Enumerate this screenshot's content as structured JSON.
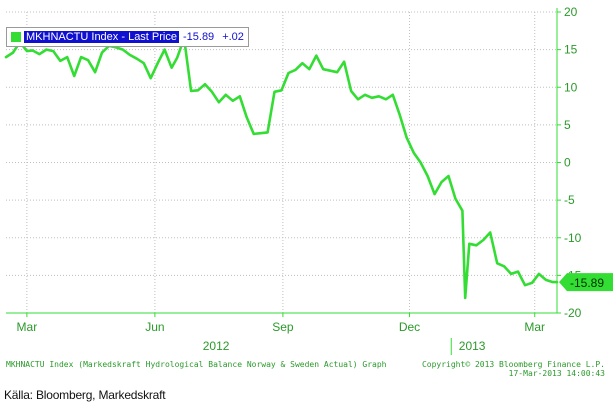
{
  "chart_data": {
    "type": "line",
    "title": "",
    "xlabel": "",
    "ylabel": "",
    "ylim": [
      -20,
      20
    ],
    "yticks": [
      20,
      15,
      10,
      5,
      0,
      -5,
      -10,
      -15,
      -20
    ],
    "xticks": [
      {
        "label": "Mar",
        "x": "2012-03-01"
      },
      {
        "label": "Jun",
        "x": "2012-06-01"
      },
      {
        "label": "Sep",
        "x": "2012-09-01"
      },
      {
        "label": "Dec",
        "x": "2012-12-01"
      },
      {
        "label": "Mar",
        "x": "2013-03-01"
      }
    ],
    "year_labels": [
      {
        "label": "2012",
        "x": "2012-07-15"
      },
      {
        "label": "2013",
        "x": "2013-01-15"
      }
    ],
    "xlim": [
      "2012-02-15",
      "2013-03-17"
    ],
    "grid": true,
    "legend_position": "top-left",
    "series": [
      {
        "name": "MKHNACTU Index - Last Price",
        "color": "#33dd33",
        "last_value": "-15.89",
        "change": "+.02",
        "x": [
          "2012-02-15",
          "2012-02-20",
          "2012-02-25",
          "2012-03-01",
          "2012-03-05",
          "2012-03-10",
          "2012-03-15",
          "2012-03-20",
          "2012-03-25",
          "2012-03-30",
          "2012-04-04",
          "2012-04-09",
          "2012-04-14",
          "2012-04-19",
          "2012-04-24",
          "2012-04-29",
          "2012-05-04",
          "2012-05-09",
          "2012-05-14",
          "2012-05-19",
          "2012-05-24",
          "2012-05-29",
          "2012-06-03",
          "2012-06-08",
          "2012-06-13",
          "2012-06-17",
          "2012-06-22",
          "2012-06-27",
          "2012-07-02",
          "2012-07-07",
          "2012-07-12",
          "2012-07-17",
          "2012-07-22",
          "2012-07-27",
          "2012-08-01",
          "2012-08-06",
          "2012-08-11",
          "2012-08-16",
          "2012-08-21",
          "2012-08-26",
          "2012-08-31",
          "2012-09-05",
          "2012-09-10",
          "2012-09-15",
          "2012-09-20",
          "2012-09-25",
          "2012-09-30",
          "2012-10-05",
          "2012-10-10",
          "2012-10-15",
          "2012-10-20",
          "2012-10-25",
          "2012-10-30",
          "2012-11-04",
          "2012-11-09",
          "2012-11-14",
          "2012-11-19",
          "2012-11-24",
          "2012-11-29",
          "2012-12-04",
          "2012-12-09",
          "2012-12-14",
          "2012-12-19",
          "2012-12-24",
          "2012-12-29",
          "2013-01-03",
          "2013-01-08",
          "2013-01-10",
          "2013-01-13",
          "2013-01-18",
          "2013-01-23",
          "2013-01-28",
          "2013-02-02",
          "2013-02-07",
          "2013-02-12",
          "2013-02-17",
          "2013-02-22",
          "2013-02-27",
          "2013-03-04",
          "2013-03-09",
          "2013-03-14",
          "2013-03-17"
        ],
        "values": [
          14.0,
          14.6,
          16.0,
          14.8,
          14.9,
          14.4,
          15.0,
          14.8,
          13.5,
          14.0,
          11.5,
          14.0,
          13.6,
          12.0,
          14.6,
          15.5,
          15.3,
          15.0,
          14.3,
          13.8,
          13.2,
          11.2,
          13.2,
          15.0,
          12.6,
          13.9,
          16.5,
          9.5,
          9.6,
          10.4,
          9.4,
          8.0,
          9.0,
          8.2,
          8.8,
          6.0,
          3.8,
          3.9,
          4.0,
          9.4,
          9.6,
          11.9,
          12.3,
          13.2,
          12.4,
          14.2,
          12.4,
          12.2,
          12.0,
          13.4,
          9.5,
          8.4,
          9.0,
          8.6,
          8.8,
          8.4,
          9.0,
          6.3,
          3.3,
          1.3,
          0.0,
          -1.8,
          -4.2,
          -2.6,
          -1.8,
          -4.8,
          -6.4,
          -18.0,
          -10.8,
          -11.0,
          -10.3,
          -9.3,
          -13.4,
          -13.8,
          -14.8,
          -14.5,
          -16.3,
          -16.0,
          -14.8,
          -15.6,
          -15.9,
          -15.89
        ]
      }
    ]
  },
  "footer": {
    "description": "MKHNACTU Index (Markedskraft Hydrological Balance Norway & Sweden Actual) Graph",
    "copyright": "Copyright© 2013 Bloomberg Finance L.P.",
    "timestamp": "17-Mar-2013 14:00:43"
  },
  "caption": "Källa: Bloomberg, Markedskraft",
  "colors": {
    "line": "#33dd33",
    "axis": "#33dd33",
    "grid": "#bfbfbf",
    "text": "#2a9a2a",
    "legend_highlight": "#1010d0"
  }
}
